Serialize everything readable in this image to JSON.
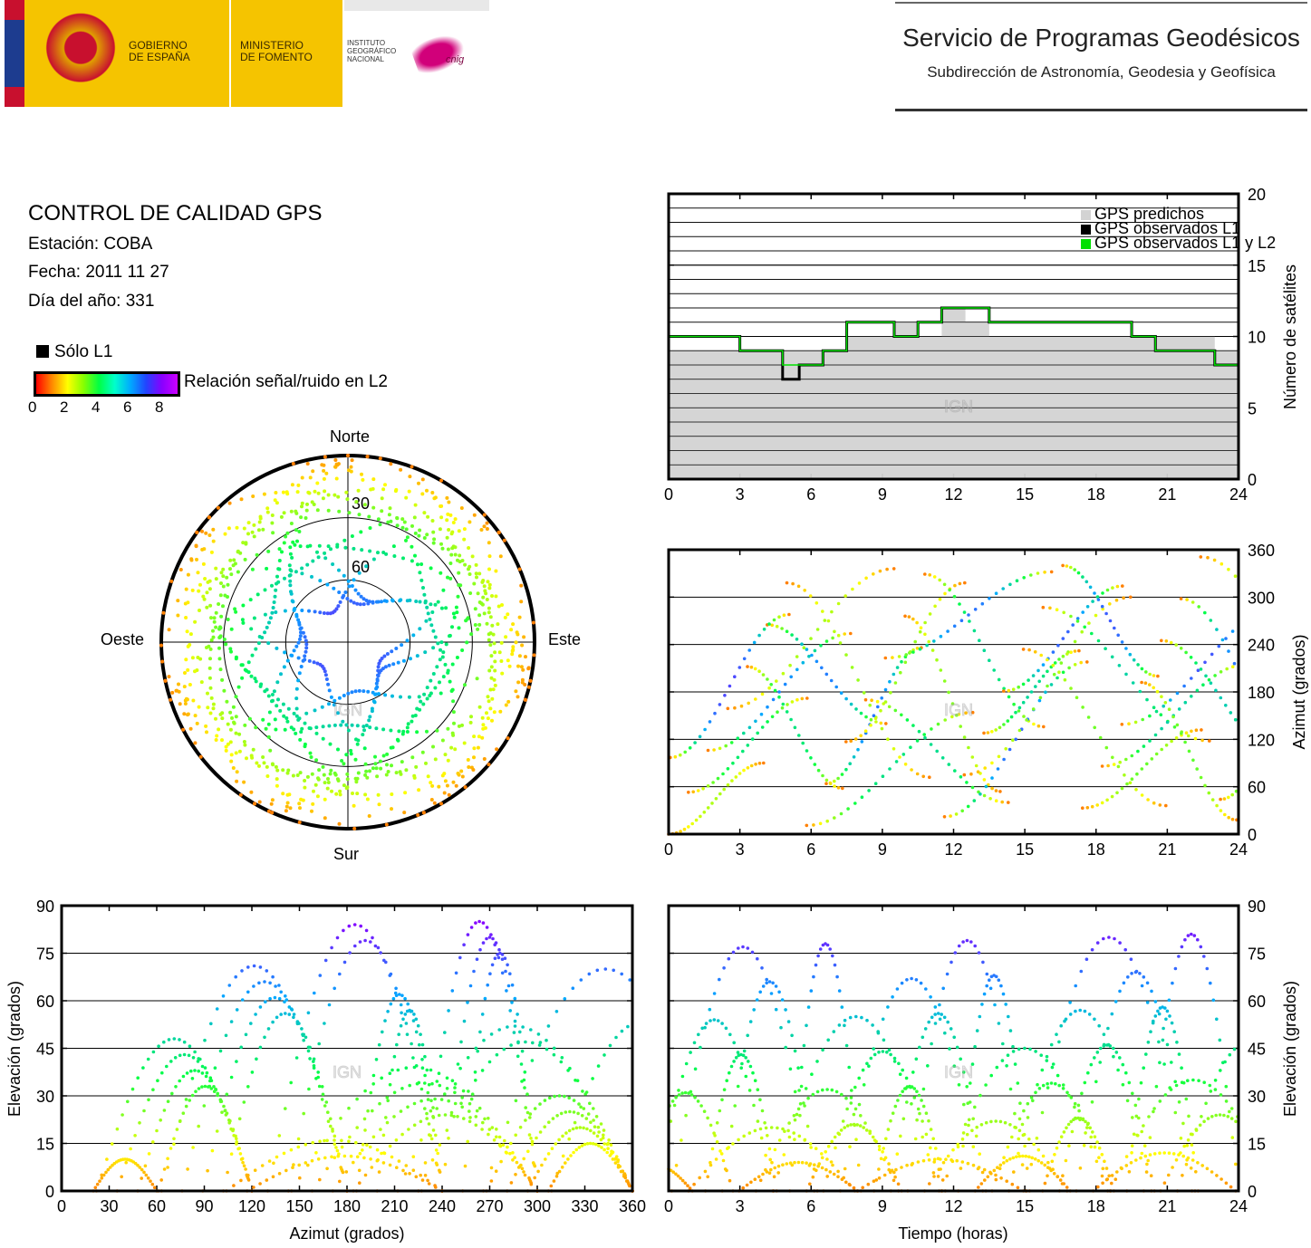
{
  "header": {
    "gov_label": "GOBIERNO\nDE ESPAÑA",
    "ministry_label": "MINISTERIO\nDE FOMENTO",
    "institute_label": "INSTITUTO\nGEOGRÁFICO\nNACIONAL",
    "cnig_label": "cnig",
    "service_title": "Servicio de Programas Geodésicos",
    "service_subtitle": "Subdirección de Astronomía, Geodesia y Geofísica"
  },
  "info": {
    "title": "CONTROL DE CALIDAD GPS",
    "station": "Estación: COBA",
    "date": "Fecha: 2011 11 27",
    "doy": "Día del año: 331"
  },
  "legend": {
    "l1_only": "Sólo L1",
    "colorbar_label": "Relación señal/ruido en L2",
    "colorbar_ticks": [
      "0",
      "2",
      "4",
      "6",
      "8"
    ],
    "colorbar_colors": [
      "#ff0000",
      "#ffff00",
      "#00ff44",
      "#00aaff",
      "#8800ff"
    ]
  },
  "watermark": "IGN",
  "chart_data": [
    {
      "id": "satellites",
      "type": "area",
      "ylabel": "Número de satélites",
      "xlabel": "",
      "xlim": [
        0,
        24
      ],
      "ylim": [
        0,
        20
      ],
      "xticks": [
        "0",
        "3",
        "6",
        "9",
        "12",
        "15",
        "18",
        "21",
        "24"
      ],
      "yticks": [
        "0",
        "5",
        "10",
        "15",
        "20"
      ],
      "grid": true,
      "legend_position": "top-right",
      "series": [
        {
          "name": "GPS predichos",
          "color": "#d3d3d3",
          "x": [
            0,
            1.5,
            3,
            4,
            4.8,
            5.5,
            6.5,
            7.5,
            8.5,
            9.5,
            10.5,
            11.5,
            12.5,
            13.5,
            15,
            16.5,
            18,
            19.5,
            20.5,
            22,
            23,
            24
          ],
          "values": [
            9,
            9,
            9,
            9,
            9,
            9,
            9,
            10,
            10,
            11,
            10,
            12,
            11,
            10,
            10,
            10,
            10,
            10,
            10,
            10,
            9,
            9
          ]
        },
        {
          "name": "GPS observados L1",
          "color": "#000000",
          "x": [
            0,
            1.5,
            3,
            4,
            4.8,
            5.5,
            6.5,
            7.5,
            8.5,
            9.5,
            10.5,
            11.5,
            12.5,
            13.5,
            15,
            16.5,
            18,
            19.5,
            20.5,
            22,
            23,
            24
          ],
          "values": [
            10,
            10,
            9,
            9,
            7,
            8,
            9,
            11,
            11,
            10,
            11,
            12,
            12,
            11,
            11,
            11,
            11,
            10,
            9,
            9,
            8,
            9
          ]
        },
        {
          "name": "GPS observados L1 y L2",
          "color": "#00e000",
          "x": [
            0,
            1.5,
            3,
            4,
            4.8,
            5.5,
            6.5,
            7.5,
            8.5,
            9.5,
            10.5,
            11.5,
            12.5,
            13.5,
            15,
            16.5,
            18,
            19.5,
            20.5,
            22,
            23,
            24
          ],
          "values": [
            10,
            10,
            9,
            9,
            8,
            8,
            9,
            11,
            11,
            10,
            11,
            12,
            12,
            11,
            11,
            11,
            11,
            10,
            9,
            9,
            8,
            9
          ]
        }
      ]
    },
    {
      "id": "skyplot",
      "type": "scatter",
      "title": "",
      "direction_labels": {
        "north": "Norte",
        "south": "Sur",
        "east": "Este",
        "west": "Oeste"
      },
      "ring_labels": [
        "30",
        "60"
      ],
      "rlim": [
        0,
        90
      ]
    },
    {
      "id": "azimuth_time",
      "type": "scatter",
      "ylabel": "Azimut (grados)",
      "xlim": [
        0,
        24
      ],
      "ylim": [
        0,
        360
      ],
      "xticks": [
        "0",
        "3",
        "6",
        "9",
        "12",
        "15",
        "18",
        "21",
        "24"
      ],
      "yticks": [
        "0",
        "60",
        "120",
        "180",
        "240",
        "300",
        "360"
      ],
      "grid": true
    },
    {
      "id": "elev_azimuth",
      "type": "scatter",
      "xlabel": "Azimut (grados)",
      "ylabel": "Elevación (grados)",
      "xlim": [
        0,
        360
      ],
      "ylim": [
        0,
        90
      ],
      "xticks": [
        "0",
        "30",
        "60",
        "90",
        "120",
        "150",
        "180",
        "210",
        "240",
        "270",
        "300",
        "330",
        "360"
      ],
      "yticks": [
        "0",
        "15",
        "30",
        "45",
        "60",
        "75",
        "90"
      ],
      "grid": true
    },
    {
      "id": "elev_time",
      "type": "scatter",
      "xlabel": "Tiempo (horas)",
      "ylabel": "Elevación (grados)",
      "xlim": [
        0,
        24
      ],
      "ylim": [
        0,
        90
      ],
      "xticks": [
        "0",
        "3",
        "6",
        "9",
        "12",
        "15",
        "18",
        "21",
        "24"
      ],
      "yticks": [
        "0",
        "15",
        "30",
        "45",
        "60",
        "75",
        "90"
      ],
      "grid": true
    }
  ]
}
